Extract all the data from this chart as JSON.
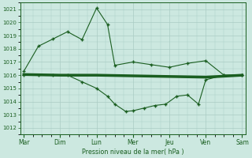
{
  "background_color": "#cce8e0",
  "grid_color": "#aaccc4",
  "line_color": "#1a5e20",
  "x_labels": [
    "Mar",
    "Dim",
    "Lun",
    "Mer",
    "Jeu",
    "Ven",
    "Sam"
  ],
  "x_ticks": [
    0,
    1,
    2,
    3,
    4,
    5,
    6
  ],
  "xlabel": "Pression niveau de la mer( hPa )",
  "ylim": [
    1011.5,
    1021.5
  ],
  "yticks": [
    1012,
    1013,
    1014,
    1015,
    1016,
    1017,
    1018,
    1019,
    1020,
    1021
  ],
  "line_upper_x": [
    0,
    0.4,
    0.8,
    1.2,
    1.6,
    2.0,
    2.3,
    2.5,
    3.0,
    3.5,
    4.0,
    4.5,
    5.0,
    5.5,
    6.0
  ],
  "line_upper_y": [
    1016.3,
    1018.2,
    1018.75,
    1019.3,
    1018.7,
    1021.1,
    1019.85,
    1016.75,
    1017.0,
    1016.8,
    1016.6,
    1016.9,
    1017.1,
    1016.0,
    1016.0
  ],
  "line_bold_x": [
    0,
    1.0,
    2.0,
    3.0,
    4.0,
    5.0,
    6.0
  ],
  "line_bold_y": [
    1016.05,
    1016.0,
    1016.0,
    1015.95,
    1015.9,
    1015.85,
    1016.0
  ],
  "line_lower_x": [
    0,
    0.4,
    0.8,
    1.2,
    1.6,
    2.0,
    2.3,
    2.5,
    2.8,
    3.0,
    3.3,
    3.6,
    3.9,
    4.2,
    4.5,
    4.8,
    5.0,
    5.5,
    6.0
  ],
  "line_lower_y": [
    1016.0,
    1016.0,
    1016.0,
    1016.0,
    1015.5,
    1015.0,
    1014.4,
    1013.8,
    1013.25,
    1013.3,
    1013.5,
    1013.7,
    1013.8,
    1014.4,
    1014.5,
    1013.8,
    1015.65,
    1016.0,
    1016.0
  ]
}
